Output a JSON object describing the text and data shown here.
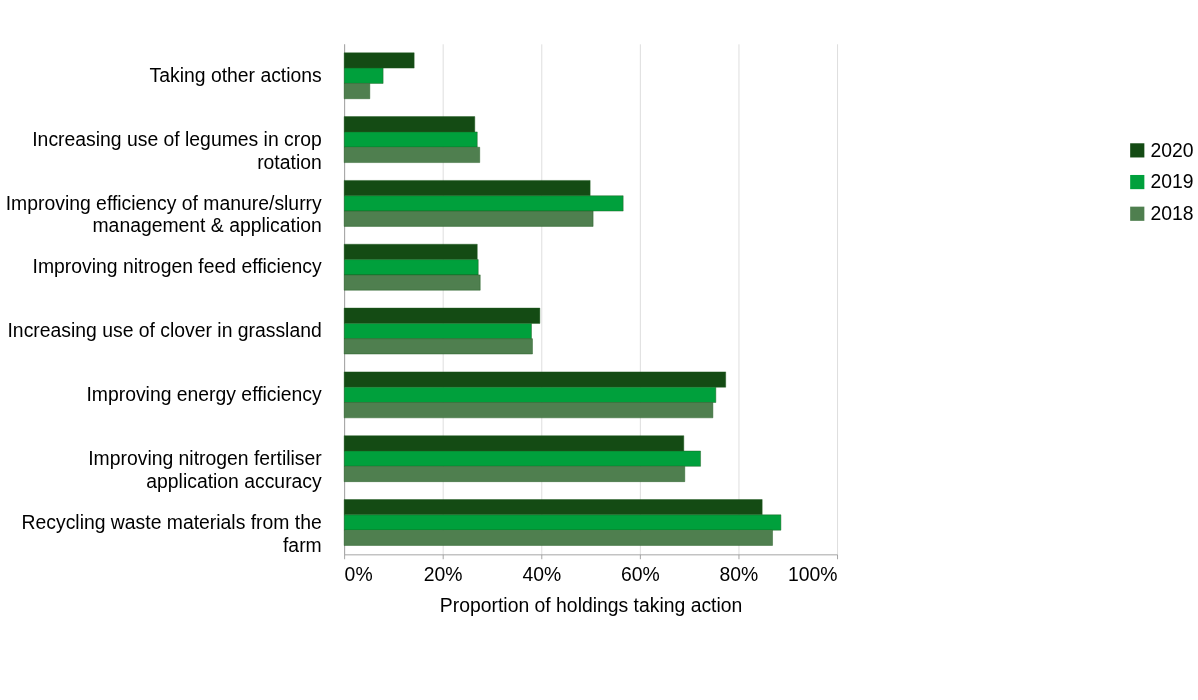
{
  "chart_data": {
    "type": "bar",
    "orientation": "horizontal",
    "xlabel": "Proportion of holdings taking action",
    "categories": [
      "Taking other actions",
      "Increasing use of legumes in crop rotation",
      "Improving efficiency of manure/slurry management & application",
      "Improving nitrogen feed efficiency",
      "Increasing use of clover in grassland",
      "Improving energy efficiency",
      "Improving nitrogen fertiliser application accuracy",
      "Recycling waste materials from the farm"
    ],
    "series": [
      {
        "name": "2020",
        "color": "#144b14",
        "values": [
          14.2,
          26.5,
          49.9,
          27.0,
          39.7,
          77.4,
          68.9,
          84.8
        ]
      },
      {
        "name": "2019",
        "color": "#00a03c",
        "values": [
          7.9,
          27.0,
          56.6,
          27.2,
          38.0,
          75.4,
          72.3,
          88.6
        ]
      },
      {
        "name": "2018",
        "color": "#4f7f4f",
        "values": [
          5.2,
          27.5,
          50.5,
          27.6,
          38.2,
          74.8,
          69.1,
          86.9
        ]
      }
    ],
    "xlim": [
      0,
      100
    ],
    "xticks": [
      {
        "value": 0,
        "label": "0%"
      },
      {
        "value": 20,
        "label": "20%"
      },
      {
        "value": 40,
        "label": "40%"
      },
      {
        "value": 60,
        "label": "60%"
      },
      {
        "value": 80,
        "label": "80%"
      },
      {
        "value": 100,
        "label": "100%"
      }
    ],
    "grid": "x",
    "legend": "right"
  }
}
